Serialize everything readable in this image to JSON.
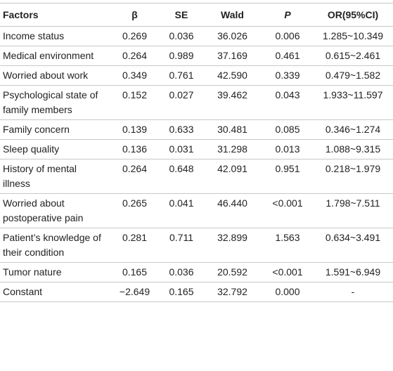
{
  "table": {
    "headers": [
      "Factors",
      "β",
      "SE",
      "Wald",
      "P",
      "OR(95%CI)"
    ],
    "rows": [
      [
        "Income status",
        "0.269",
        "0.036",
        "36.026",
        "0.006",
        "1.285~10.349"
      ],
      [
        "Medical environment",
        "0.264",
        "0.989",
        "37.169",
        "0.461",
        "0.615~2.461"
      ],
      [
        "Worried about work",
        "0.349",
        "0.761",
        "42.590",
        "0.339",
        "0.479~1.582"
      ],
      [
        "Psychological state of family members",
        "0.152",
        "0.027",
        "39.462",
        "0.043",
        "1.933~11.597"
      ],
      [
        "Family concern",
        "0.139",
        "0.633",
        "30.481",
        "0.085",
        "0.346~1.274"
      ],
      [
        "Sleep quality",
        "0.136",
        "0.031",
        "31.298",
        "0.013",
        "1.088~9.315"
      ],
      [
        "History of mental illness",
        "0.264",
        "0.648",
        "42.091",
        "0.951",
        "0.218~1.979"
      ],
      [
        "Worried about postoperative pain",
        "0.265",
        "0.041",
        "46.440",
        "<0.001",
        "1.798~7.511"
      ],
      [
        "Patient’s knowledge of their condition",
        "0.281",
        "0.711",
        "32.899",
        "1.563",
        "0.634~3.491"
      ],
      [
        "Tumor nature",
        "0.165",
        "0.036",
        "20.592",
        "<0.001",
        "1.591~6.949"
      ],
      [
        "Constant",
        "−2.649",
        "0.165",
        "32.792",
        "0.000",
        "-"
      ]
    ]
  }
}
